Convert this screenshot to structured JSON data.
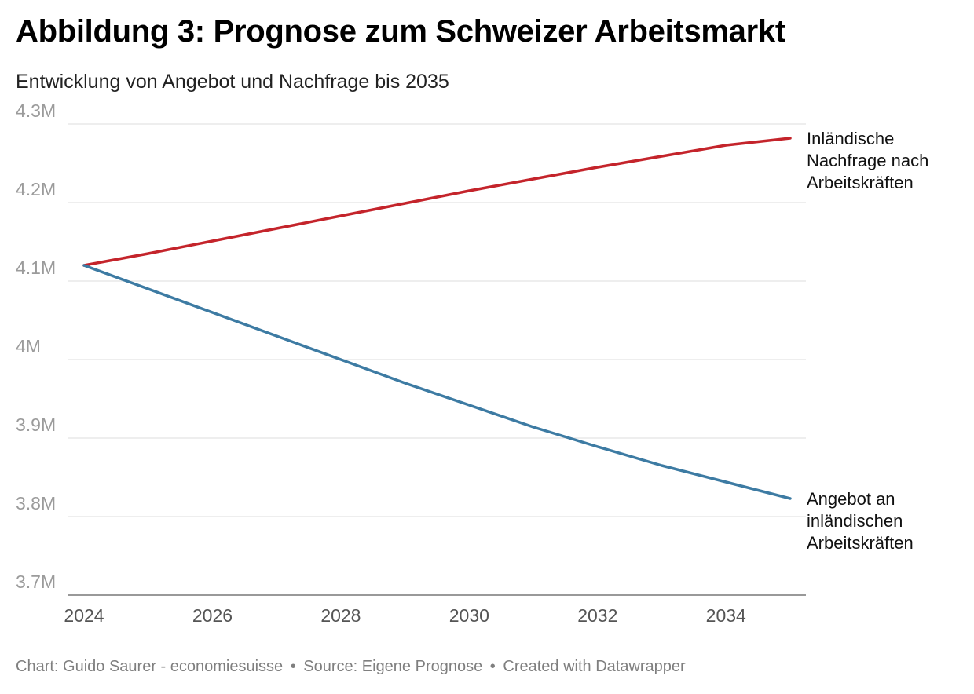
{
  "title": "Abbildung 3: Prognose zum Schweizer Arbeitsmarkt",
  "subtitle": "Entwicklung von Angebot und Nachfrage bis 2035",
  "footer": {
    "chart_credit": "Chart: Guido Saurer - economiesuisse",
    "source": "Source: Eigene Prognose",
    "created_with": "Created with Datawrapper",
    "separator": "•"
  },
  "chart_data": {
    "type": "line",
    "x": [
      2024,
      2025,
      2026,
      2027,
      2028,
      2029,
      2030,
      2031,
      2032,
      2033,
      2034,
      2035
    ],
    "xlim": [
      2024,
      2035
    ],
    "x_ticks": [
      2024,
      2026,
      2028,
      2030,
      2032,
      2034
    ],
    "x_tick_labels": [
      "2024",
      "2026",
      "2028",
      "2030",
      "2032",
      "2034"
    ],
    "ylim": [
      3700000,
      4300000
    ],
    "y_ticks": [
      3700000,
      3800000,
      3900000,
      4000000,
      4100000,
      4200000,
      4300000
    ],
    "y_tick_labels": [
      "3.7M",
      "3.8M",
      "3.9M",
      "4M",
      "4.1M",
      "4.2M",
      "4.3M"
    ],
    "grid": true,
    "legend": "direct-labels-right",
    "series": [
      {
        "name": "Inländische Nachfrage nach Arbeitskräften",
        "label_lines": [
          "Inländische",
          "Nachfrage nach",
          "Arbeitskräften"
        ],
        "color": "#c4242b",
        "values": [
          4120000,
          4135000,
          4151000,
          4167000,
          4183000,
          4199000,
          4215000,
          4230000,
          4245000,
          4259000,
          4273000,
          4282000
        ]
      },
      {
        "name": "Angebot an inländischen Arbeitskräften",
        "label_lines": [
          "Angebot an",
          "inländischen",
          "Arbeitskräften"
        ],
        "color": "#3d7ba3",
        "values": [
          4120000,
          4090000,
          4060000,
          4030000,
          4000000,
          3970000,
          3942000,
          3914000,
          3889000,
          3865000,
          3844000,
          3823000
        ]
      }
    ]
  }
}
